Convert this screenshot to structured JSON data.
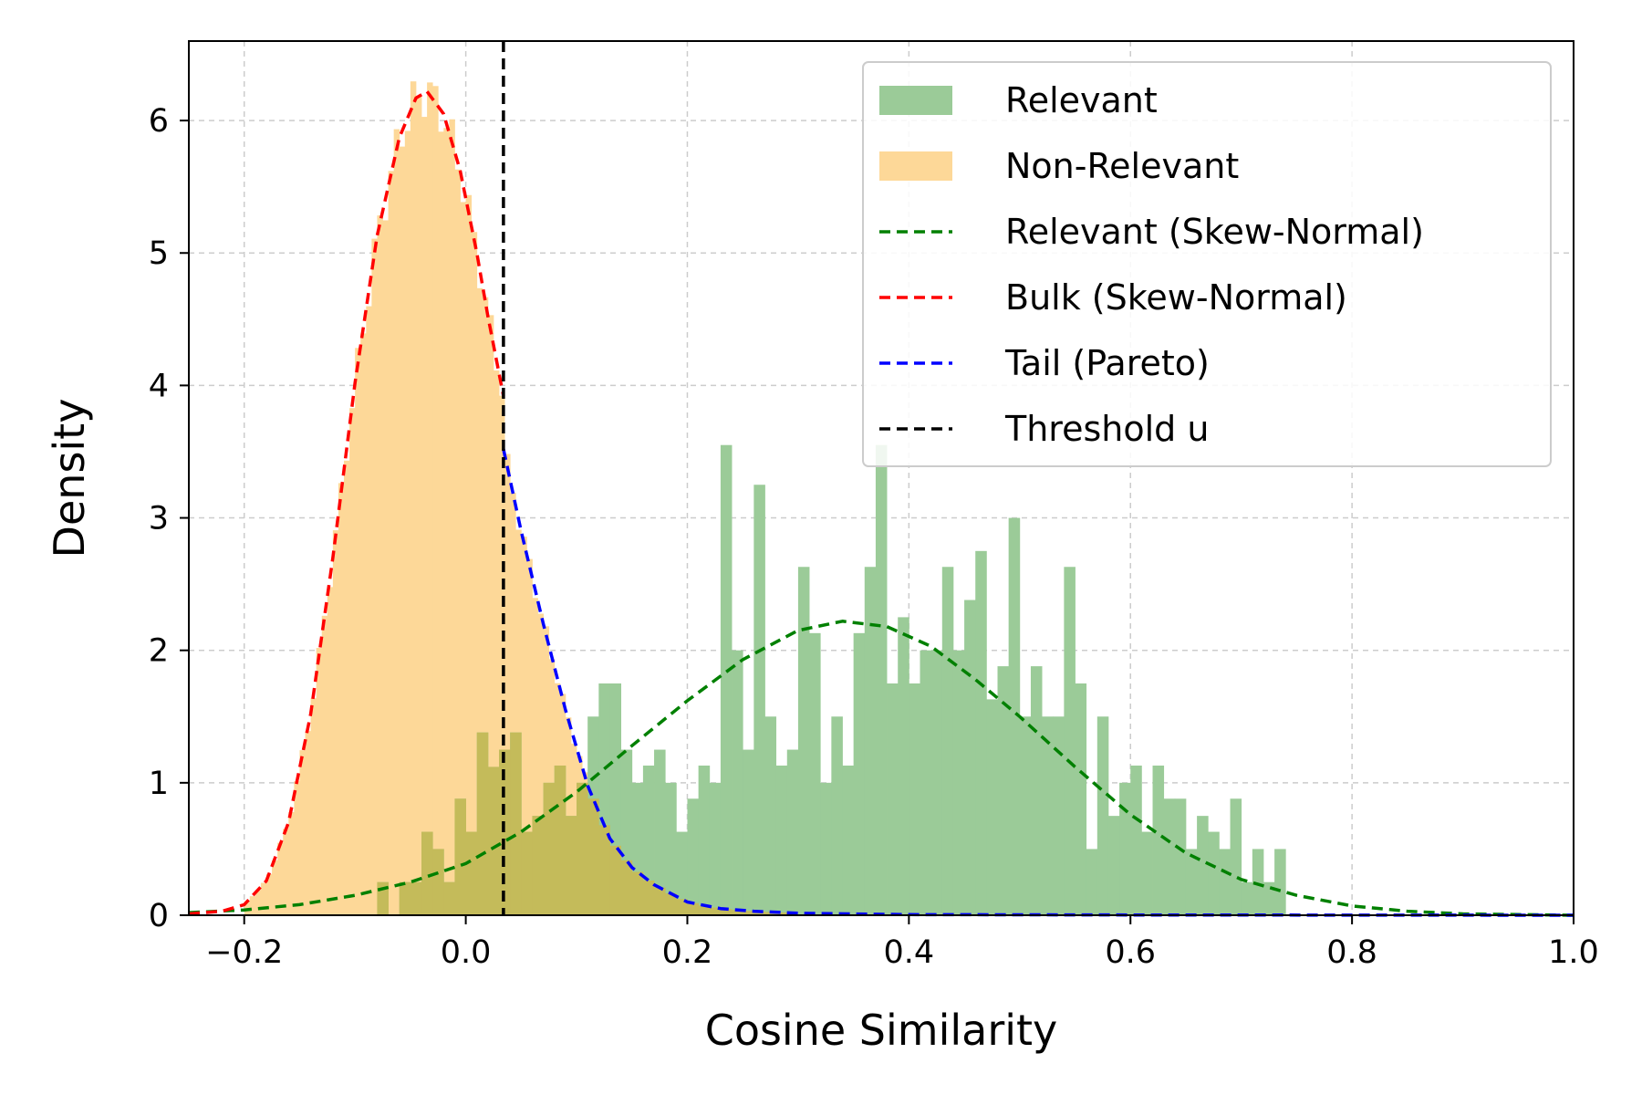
{
  "chart_data": {
    "type": "histogram",
    "title": "",
    "xlabel": "Cosine Similarity",
    "ylabel": "Density",
    "xlim": [
      -0.25,
      1.0
    ],
    "ylim": [
      0,
      6.6
    ],
    "xticks": [
      -0.2,
      0.0,
      0.2,
      0.4,
      0.6,
      0.8,
      1.0
    ],
    "xtick_labels": [
      "−0.2",
      "0.0",
      "0.2",
      "0.4",
      "0.6",
      "0.8",
      "1.0"
    ],
    "yticks": [
      0,
      1,
      2,
      3,
      4,
      5,
      6
    ],
    "ytick_labels": [
      "0",
      "1",
      "2",
      "3",
      "4",
      "5",
      "6"
    ],
    "grid": true,
    "legend_position": "top-right",
    "legend": [
      "Relevant",
      "Non-Relevant",
      "Relevant (Skew-Normal)",
      "Bulk (Skew-Normal)",
      "Tail (Pareto)",
      "Threshold u"
    ],
    "colors": {
      "relevant_hist": "#9bcb98",
      "nonrelevant_hist": "#fdd898",
      "overlap": "#c4bb5a",
      "relevant_fit": "#008000",
      "bulk_fit": "#ff0000",
      "tail_fit": "#0000ff",
      "threshold": "#000000"
    },
    "threshold_u": 0.034,
    "histograms": [
      {
        "name": "Relevant",
        "bin_width": 0.01,
        "bins": [
          [
            -0.075,
            0.25
          ],
          [
            -0.055,
            0.25
          ],
          [
            -0.045,
            0.25
          ],
          [
            -0.035,
            0.63
          ],
          [
            -0.025,
            0.5
          ],
          [
            -0.015,
            0.25
          ],
          [
            -0.005,
            0.88
          ],
          [
            0.005,
            0.63
          ],
          [
            0.015,
            1.38
          ],
          [
            0.025,
            1.12
          ],
          [
            0.035,
            1.25
          ],
          [
            0.045,
            1.38
          ],
          [
            0.055,
            0.63
          ],
          [
            0.065,
            0.75
          ],
          [
            0.075,
            1.0
          ],
          [
            0.085,
            1.13
          ],
          [
            0.095,
            0.75
          ],
          [
            0.105,
            1.0
          ],
          [
            0.115,
            1.5
          ],
          [
            0.125,
            1.75
          ],
          [
            0.135,
            1.75
          ],
          [
            0.145,
            1.25
          ],
          [
            0.155,
            1.0
          ],
          [
            0.165,
            1.13
          ],
          [
            0.175,
            1.25
          ],
          [
            0.185,
            1.0
          ],
          [
            0.195,
            0.63
          ],
          [
            0.205,
            0.88
          ],
          [
            0.215,
            1.13
          ],
          [
            0.225,
            1.0
          ],
          [
            0.235,
            3.55
          ],
          [
            0.245,
            2.0
          ],
          [
            0.255,
            1.25
          ],
          [
            0.265,
            3.25
          ],
          [
            0.275,
            1.5
          ],
          [
            0.285,
            1.13
          ],
          [
            0.295,
            1.25
          ],
          [
            0.305,
            2.63
          ],
          [
            0.315,
            2.13
          ],
          [
            0.325,
            1.0
          ],
          [
            0.335,
            1.5
          ],
          [
            0.345,
            1.13
          ],
          [
            0.355,
            2.13
          ],
          [
            0.365,
            2.63
          ],
          [
            0.375,
            3.55
          ],
          [
            0.385,
            1.75
          ],
          [
            0.395,
            2.25
          ],
          [
            0.405,
            1.75
          ],
          [
            0.415,
            2.0
          ],
          [
            0.425,
            2.0
          ],
          [
            0.435,
            2.63
          ],
          [
            0.445,
            2.0
          ],
          [
            0.455,
            2.38
          ],
          [
            0.465,
            2.75
          ],
          [
            0.475,
            1.63
          ],
          [
            0.485,
            1.88
          ],
          [
            0.495,
            3.0
          ],
          [
            0.505,
            1.5
          ],
          [
            0.515,
            1.88
          ],
          [
            0.525,
            1.5
          ],
          [
            0.535,
            1.5
          ],
          [
            0.545,
            2.63
          ],
          [
            0.555,
            1.75
          ],
          [
            0.565,
            0.5
          ],
          [
            0.575,
            1.5
          ],
          [
            0.585,
            0.75
          ],
          [
            0.595,
            1.0
          ],
          [
            0.605,
            1.13
          ],
          [
            0.615,
            0.63
          ],
          [
            0.625,
            1.13
          ],
          [
            0.635,
            0.88
          ],
          [
            0.645,
            0.88
          ],
          [
            0.655,
            0.5
          ],
          [
            0.665,
            0.75
          ],
          [
            0.675,
            0.63
          ],
          [
            0.685,
            0.5
          ],
          [
            0.695,
            0.88
          ],
          [
            0.705,
            0.25
          ],
          [
            0.715,
            0.5
          ],
          [
            0.725,
            0.25
          ],
          [
            0.735,
            0.5
          ]
        ]
      },
      {
        "name": "Non-Relevant",
        "bin_width": 0.005,
        "bins": "fitted-density"
      }
    ],
    "fits": [
      {
        "name": "Relevant (Skew-Normal)",
        "points": [
          [
            -0.25,
            0.02
          ],
          [
            -0.2,
            0.04
          ],
          [
            -0.15,
            0.08
          ],
          [
            -0.1,
            0.15
          ],
          [
            -0.05,
            0.25
          ],
          [
            0.0,
            0.39
          ],
          [
            0.05,
            0.63
          ],
          [
            0.1,
            0.93
          ],
          [
            0.15,
            1.28
          ],
          [
            0.2,
            1.62
          ],
          [
            0.25,
            1.93
          ],
          [
            0.3,
            2.15
          ],
          [
            0.34,
            2.22
          ],
          [
            0.38,
            2.18
          ],
          [
            0.42,
            2.03
          ],
          [
            0.46,
            1.78
          ],
          [
            0.5,
            1.5
          ],
          [
            0.55,
            1.12
          ],
          [
            0.6,
            0.76
          ],
          [
            0.65,
            0.47
          ],
          [
            0.7,
            0.27
          ],
          [
            0.75,
            0.15
          ],
          [
            0.8,
            0.07
          ],
          [
            0.85,
            0.03
          ],
          [
            0.9,
            0.01
          ],
          [
            0.95,
            0.005
          ],
          [
            1.0,
            0.0
          ]
        ]
      },
      {
        "name": "Bulk (Skew-Normal)",
        "points": [
          [
            -0.25,
            0.01
          ],
          [
            -0.22,
            0.03
          ],
          [
            -0.2,
            0.08
          ],
          [
            -0.18,
            0.26
          ],
          [
            -0.16,
            0.7
          ],
          [
            -0.14,
            1.52
          ],
          [
            -0.12,
            2.7
          ],
          [
            -0.1,
            4.02
          ],
          [
            -0.08,
            5.13
          ],
          [
            -0.06,
            5.87
          ],
          [
            -0.045,
            6.17
          ],
          [
            -0.035,
            6.22
          ],
          [
            -0.02,
            6.05
          ],
          [
            -0.005,
            5.62
          ],
          [
            0.01,
            5.0
          ],
          [
            0.02,
            4.52
          ],
          [
            0.034,
            3.92
          ]
        ]
      },
      {
        "name": "Tail (Pareto)",
        "points": [
          [
            0.034,
            3.52
          ],
          [
            0.05,
            2.9
          ],
          [
            0.07,
            2.2
          ],
          [
            0.09,
            1.55
          ],
          [
            0.11,
            0.98
          ],
          [
            0.13,
            0.58
          ],
          [
            0.15,
            0.36
          ],
          [
            0.17,
            0.23
          ],
          [
            0.2,
            0.1
          ],
          [
            0.23,
            0.05
          ],
          [
            0.26,
            0.03
          ],
          [
            0.3,
            0.015
          ],
          [
            0.4,
            0.005
          ],
          [
            0.6,
            0.002
          ],
          [
            1.0,
            0.0
          ]
        ]
      }
    ]
  }
}
